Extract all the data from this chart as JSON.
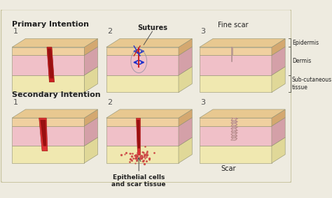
{
  "bg_color": "#eeebe0",
  "border_color": "#c8c4a0",
  "title_primary": "Primary Intention",
  "title_secondary": "Secondary Intention",
  "label_sutures": "Sutures",
  "label_fine_scar": "Fine scar",
  "label_epi": "Epithelial cells\nand scar tissue",
  "label_scar": "Scar",
  "legend_epidermis": "Epidermis",
  "legend_dermis": "Dermis",
  "legend_subcutaneous": "Sub-cutaneous\ntissue",
  "epi_color": "#f0d0a0",
  "epi_top_color": "#e8c890",
  "dermis_color": "#f0c0c8",
  "subcut_color": "#f0e8b0",
  "subcut_side_color": "#e0d898",
  "side_epi_color": "#d4a870",
  "side_derm_color": "#d4a0a8",
  "wound_red": "#cc2020",
  "wound_dark_red": "#991010",
  "wound_bright": "#dd3333",
  "suture_color": "#2030cc",
  "text_color": "#202020",
  "num_color": "#505050",
  "line_color": "#909070",
  "legend_line_color": "#606050"
}
